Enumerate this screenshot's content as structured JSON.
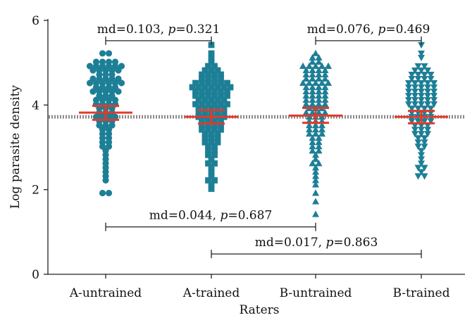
{
  "chart_data": {
    "type": "scatter",
    "title": "",
    "xlabel": "Raters",
    "ylabel": "Log parasite density",
    "ylim": [
      0,
      6
    ],
    "yticks": [
      0,
      2,
      4,
      6
    ],
    "grid": false,
    "categories": [
      "A-untrained",
      "A-trained",
      "B-untrained",
      "B-trained"
    ],
    "reference_line": {
      "y": 3.72,
      "style": "dotted",
      "color": "#8a8a8a"
    },
    "colors": {
      "points": "#1d7f96",
      "summary": "#e23a2a",
      "axis": "#222222"
    },
    "series": [
      {
        "category": "A-untrained",
        "marker": "circle",
        "mean": 3.82,
        "ci_low": 3.65,
        "ci_high": 3.98,
        "values": [
          5.22,
          5.22,
          5.02,
          5.02,
          5.02,
          5.02,
          4.92,
          4.92,
          4.92,
          4.92,
          4.92,
          4.92,
          4.82,
          4.82,
          4.82,
          4.82,
          4.82,
          4.72,
          4.72,
          4.72,
          4.62,
          4.62,
          4.62,
          4.62,
          4.62,
          4.52,
          4.52,
          4.52,
          4.52,
          4.52,
          4.52,
          4.42,
          4.42,
          4.42,
          4.42,
          4.32,
          4.32,
          4.32,
          4.32,
          4.32,
          4.22,
          4.22,
          4.22,
          4.12,
          4.12,
          4.12,
          4.12,
          4.02,
          4.02,
          4.02,
          4.02,
          3.92,
          3.92,
          3.92,
          3.82,
          3.82,
          3.82,
          3.72,
          3.72,
          3.72,
          3.72,
          3.62,
          3.62,
          3.62,
          3.52,
          3.52,
          3.52,
          3.42,
          3.42,
          3.32,
          3.32,
          3.22,
          3.22,
          3.12,
          3.12,
          3.02,
          3.02,
          2.92,
          2.82,
          2.72,
          2.62,
          2.52,
          2.42,
          2.32,
          2.22,
          1.92,
          1.92
        ]
      },
      {
        "category": "A-trained",
        "marker": "square",
        "mean": 3.72,
        "ci_low": 3.56,
        "ci_high": 3.88,
        "values": [
          5.42,
          5.22,
          5.12,
          5.02,
          4.92,
          4.92,
          4.82,
          4.82,
          4.82,
          4.72,
          4.72,
          4.72,
          4.72,
          4.62,
          4.62,
          4.62,
          4.62,
          4.52,
          4.52,
          4.52,
          4.52,
          4.52,
          4.52,
          4.42,
          4.42,
          4.42,
          4.42,
          4.42,
          4.42,
          4.42,
          4.32,
          4.32,
          4.32,
          4.32,
          4.32,
          4.32,
          4.22,
          4.22,
          4.22,
          4.22,
          4.22,
          4.22,
          4.12,
          4.12,
          4.12,
          4.12,
          4.12,
          4.02,
          4.02,
          4.02,
          4.02,
          4.02,
          4.02,
          3.92,
          3.92,
          3.92,
          3.92,
          3.92,
          3.82,
          3.82,
          3.82,
          3.82,
          3.82,
          3.72,
          3.72,
          3.72,
          3.72,
          3.72,
          3.62,
          3.62,
          3.62,
          3.62,
          3.52,
          3.52,
          3.52,
          3.52,
          3.42,
          3.42,
          3.42,
          3.42,
          3.32,
          3.32,
          3.32,
          3.22,
          3.22,
          3.22,
          3.12,
          3.12,
          3.12,
          3.02,
          3.02,
          2.92,
          2.92,
          2.82,
          2.82,
          2.72,
          2.62,
          2.62,
          2.52,
          2.42,
          2.32,
          2.22,
          2.22,
          2.12,
          2.02
        ]
      },
      {
        "category": "B-untrained",
        "marker": "triangle-up",
        "mean": 3.75,
        "ci_low": 3.58,
        "ci_high": 3.93,
        "values": [
          5.22,
          5.12,
          5.12,
          5.02,
          5.02,
          4.92,
          4.92,
          4.92,
          4.92,
          4.92,
          4.82,
          4.82,
          4.82,
          4.82,
          4.72,
          4.72,
          4.72,
          4.72,
          4.62,
          4.62,
          4.62,
          4.62,
          4.52,
          4.52,
          4.52,
          4.52,
          4.52,
          4.42,
          4.42,
          4.42,
          4.42,
          4.32,
          4.32,
          4.32,
          4.32,
          4.22,
          4.22,
          4.22,
          4.22,
          4.12,
          4.12,
          4.12,
          4.12,
          4.02,
          4.02,
          4.02,
          4.02,
          3.92,
          3.92,
          3.92,
          3.82,
          3.82,
          3.82,
          3.82,
          3.72,
          3.72,
          3.72,
          3.62,
          3.62,
          3.62,
          3.52,
          3.52,
          3.52,
          3.42,
          3.42,
          3.42,
          3.32,
          3.32,
          3.32,
          3.22,
          3.22,
          3.12,
          3.12,
          3.02,
          3.02,
          2.92,
          2.92,
          2.82,
          2.72,
          2.62,
          2.62,
          2.52,
          2.42,
          2.32,
          2.22,
          2.12,
          1.92,
          1.72,
          1.42
        ]
      },
      {
        "category": "B-trained",
        "marker": "triangle-down",
        "mean": 3.72,
        "ci_low": 3.57,
        "ci_high": 3.86,
        "values": [
          5.42,
          5.22,
          5.12,
          4.92,
          4.92,
          4.82,
          4.82,
          4.82,
          4.72,
          4.72,
          4.72,
          4.72,
          4.62,
          4.62,
          4.62,
          4.62,
          4.52,
          4.52,
          4.52,
          4.52,
          4.52,
          4.42,
          4.42,
          4.42,
          4.42,
          4.42,
          4.32,
          4.32,
          4.32,
          4.32,
          4.32,
          4.22,
          4.22,
          4.22,
          4.22,
          4.22,
          4.12,
          4.12,
          4.12,
          4.12,
          4.12,
          4.02,
          4.02,
          4.02,
          4.02,
          4.02,
          3.92,
          3.92,
          3.92,
          3.92,
          3.82,
          3.82,
          3.82,
          3.82,
          3.72,
          3.72,
          3.72,
          3.72,
          3.62,
          3.62,
          3.62,
          3.62,
          3.52,
          3.52,
          3.52,
          3.42,
          3.42,
          3.42,
          3.32,
          3.32,
          3.32,
          3.22,
          3.22,
          3.12,
          3.12,
          3.02,
          3.02,
          2.92,
          2.82,
          2.72,
          2.62,
          2.52,
          2.52,
          2.42,
          2.32,
          2.32
        ]
      }
    ],
    "comparisons": [
      {
        "from": "A-untrained",
        "to": "A-trained",
        "y": 5.52,
        "md": "0.103",
        "p": "0.321"
      },
      {
        "from": "B-untrained",
        "to": "B-trained",
        "y": 5.52,
        "md": "0.076",
        "p": "0.469"
      },
      {
        "from": "A-untrained",
        "to": "B-untrained",
        "y": 1.12,
        "md": "0.044",
        "p": "0.687"
      },
      {
        "from": "A-trained",
        "to": "B-trained",
        "y": 0.48,
        "md": "0.017",
        "p": "0.863"
      }
    ]
  }
}
